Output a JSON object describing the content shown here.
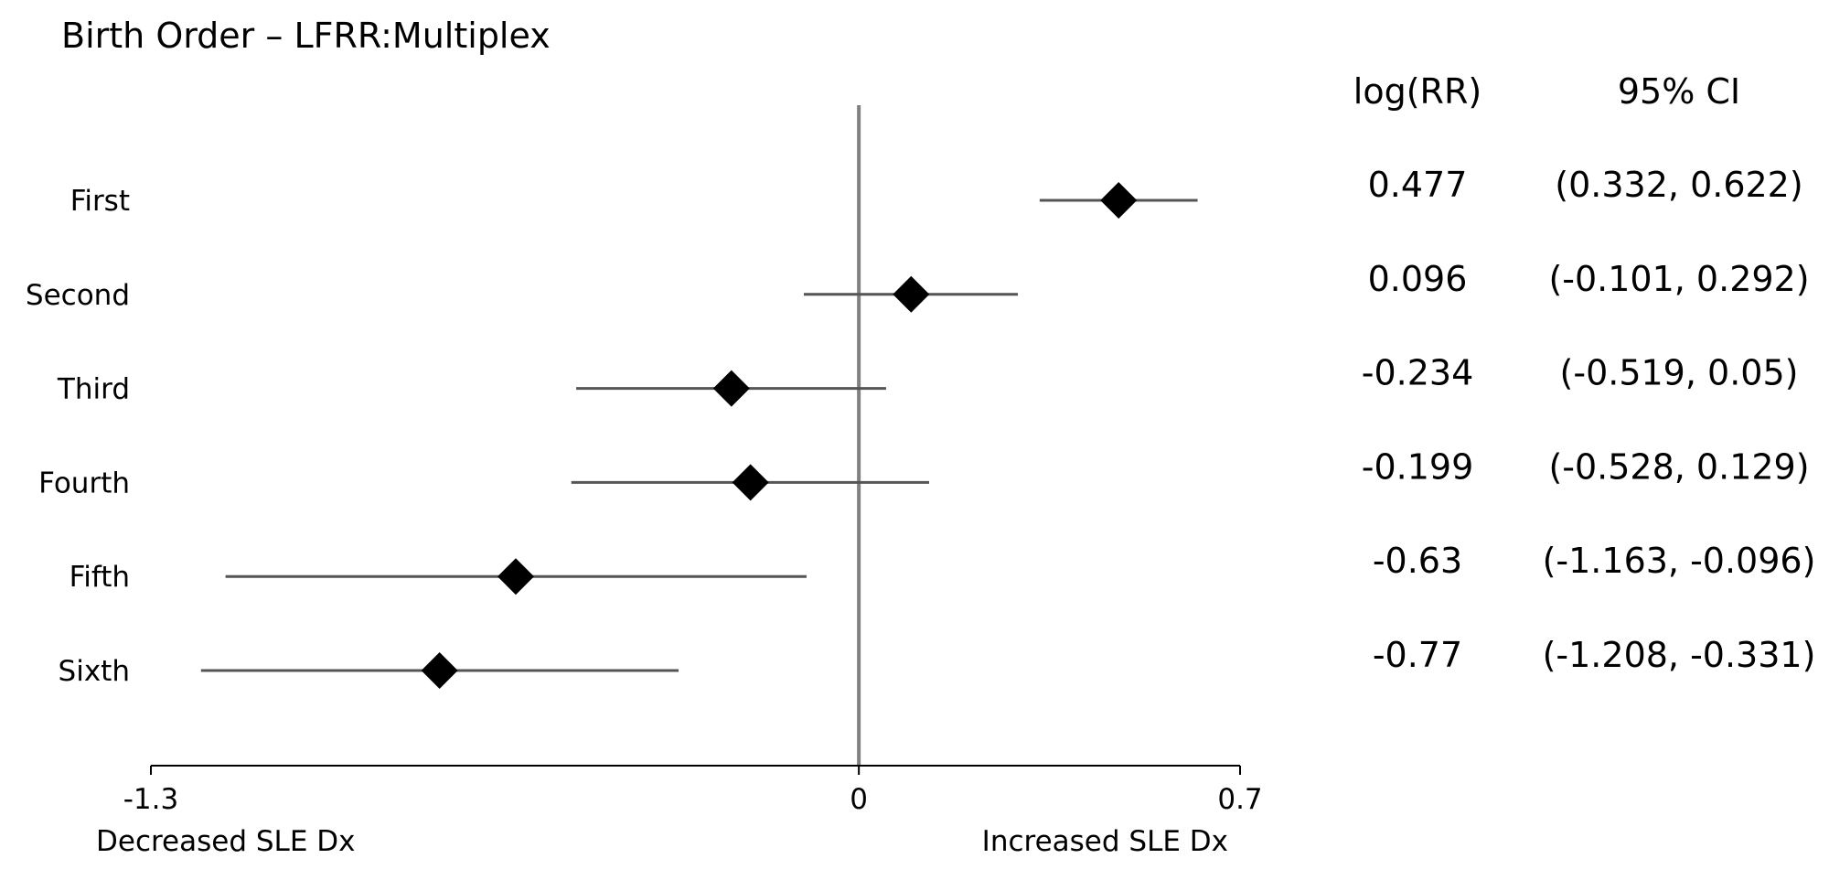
{
  "chart_data": {
    "type": "forest",
    "title": "Birth Order – LFRR:Multiplex",
    "rows": [
      {
        "label": "First",
        "estimate": 0.477,
        "ci": [
          0.332,
          0.622
        ],
        "estimate_text": "0.477",
        "ci_text": "(0.332, 0.622)"
      },
      {
        "label": "Second",
        "estimate": 0.096,
        "ci": [
          -0.101,
          0.292
        ],
        "estimate_text": "0.096",
        "ci_text": "(-0.101, 0.292)"
      },
      {
        "label": "Third",
        "estimate": -0.234,
        "ci": [
          -0.519,
          0.05
        ],
        "estimate_text": "-0.234",
        "ci_text": "(-0.519, 0.05)"
      },
      {
        "label": "Fourth",
        "estimate": -0.199,
        "ci": [
          -0.528,
          0.129
        ],
        "estimate_text": "-0.199",
        "ci_text": "(-0.528, 0.129)"
      },
      {
        "label": "Fifth",
        "estimate": -0.63,
        "ci": [
          -1.163,
          -0.096
        ],
        "estimate_text": "-0.63",
        "ci_text": "(-1.163, -0.096)"
      },
      {
        "label": "Sixth",
        "estimate": -0.77,
        "ci": [
          -1.208,
          -0.331
        ],
        "estimate_text": "-0.77",
        "ci_text": "(-1.208, -0.331)"
      }
    ],
    "xlim": [
      -1.3,
      0.7
    ],
    "xticks": [
      -1.3,
      0,
      0.7
    ],
    "xtick_labels": [
      "-1.3",
      "0",
      "0.7"
    ],
    "reference_line": 0,
    "x_left_label": "Decreased SLE Dx",
    "x_right_label": "Increased SLE Dx",
    "column_headers": {
      "estimate": "log(RR)",
      "ci": "95% CI"
    },
    "grid": false,
    "colors": {
      "marker": "#000000",
      "ci_line": "#555555",
      "reference_line": "#808080",
      "axis": "#000000"
    }
  }
}
